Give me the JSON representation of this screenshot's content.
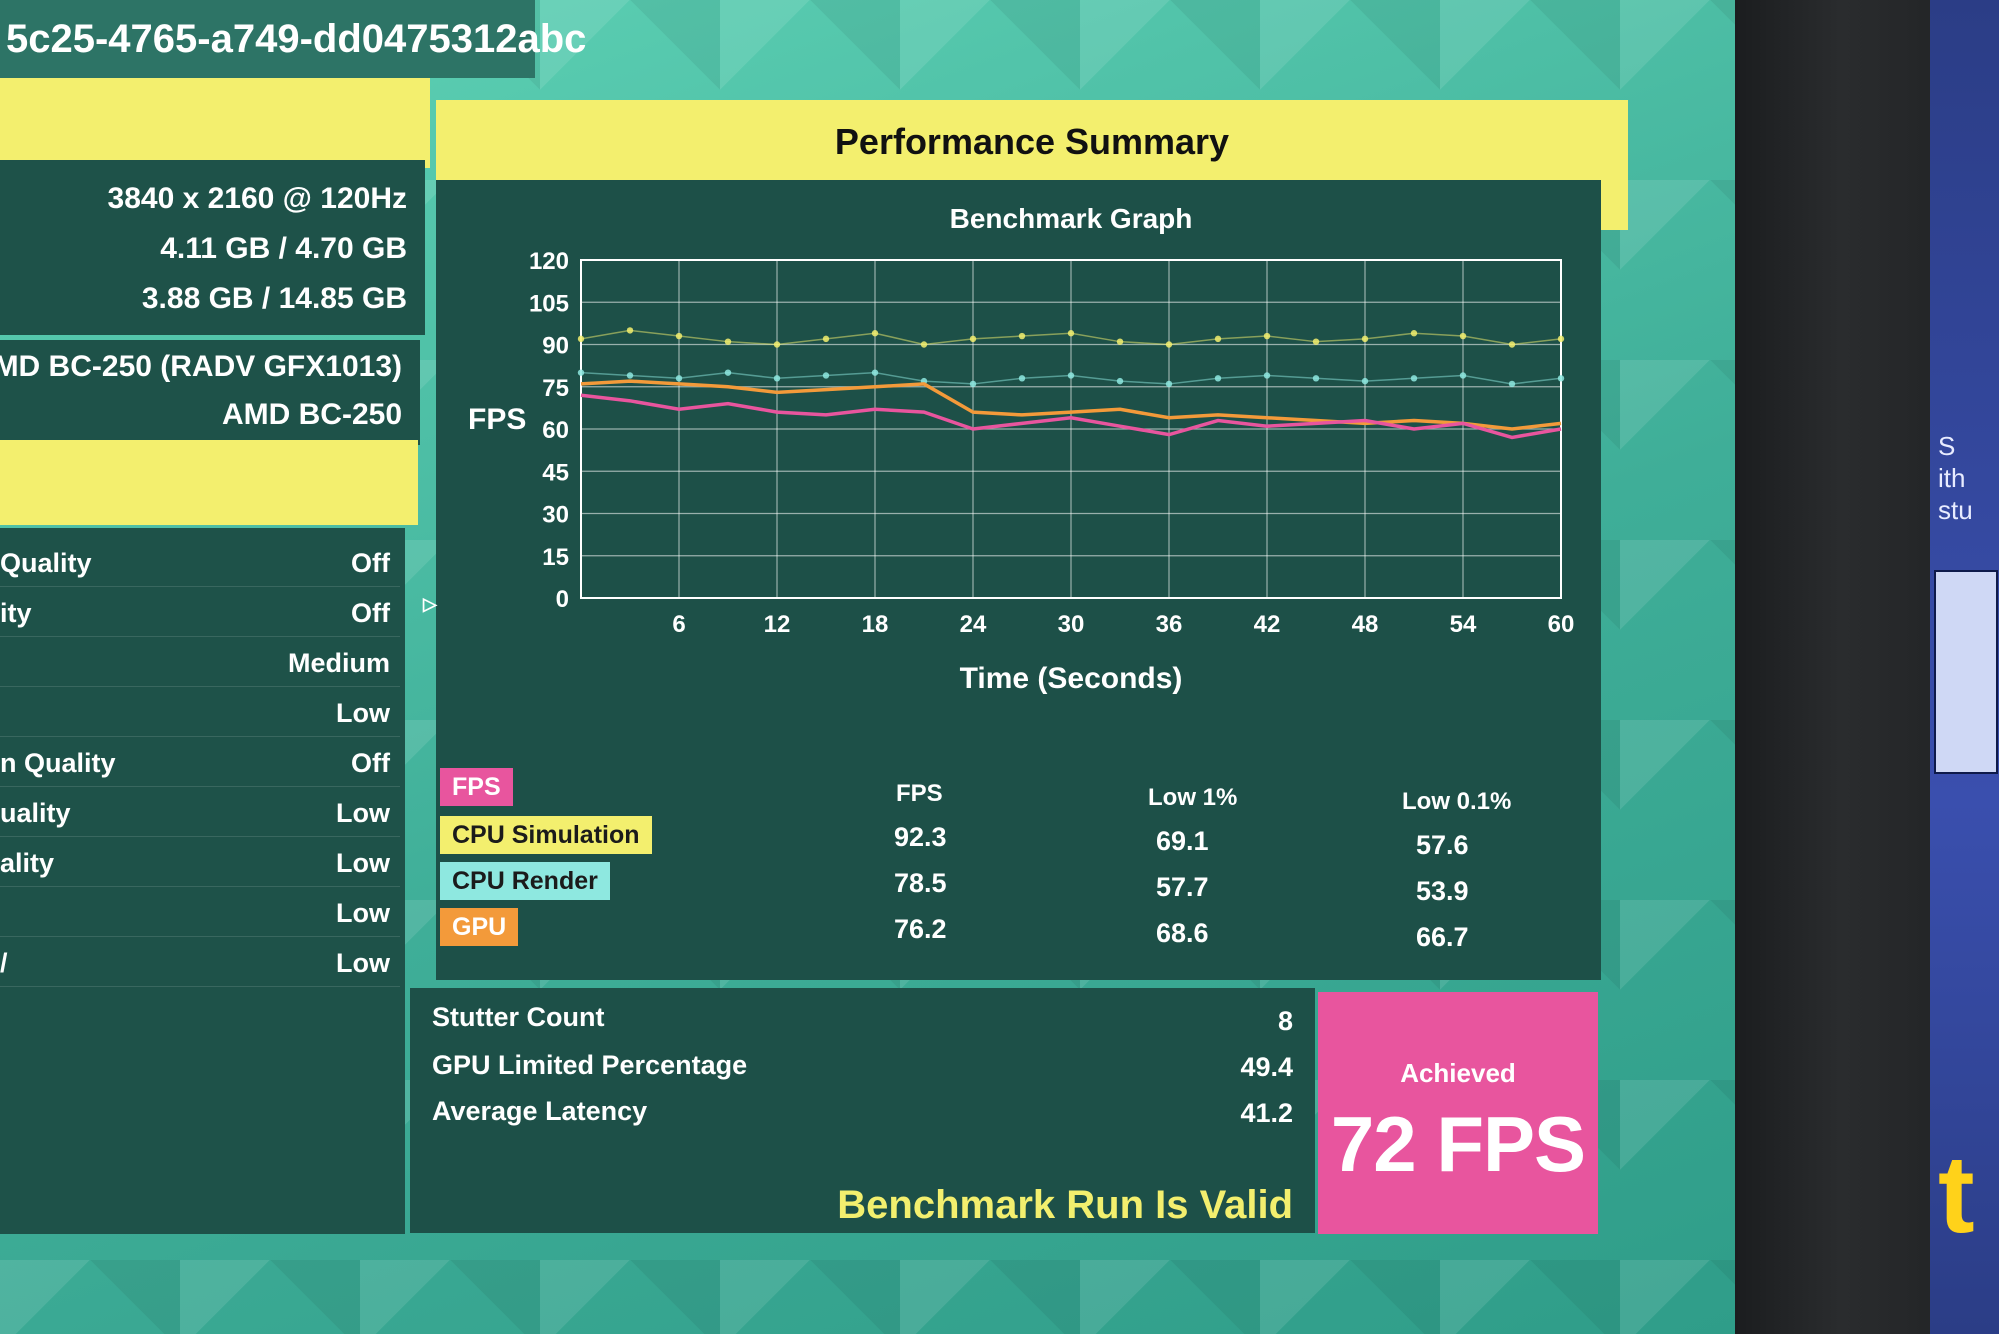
{
  "header": {
    "run_id": "5c25-4765-a749-dd0475312abc"
  },
  "system_info": [
    "3840 x 2160 @ 120Hz",
    "4.11 GB / 4.70 GB",
    "3.88 GB / 14.85 GB"
  ],
  "hardware": [
    "AMD BC-250 (RADV GFX1013)",
    "AMD BC-250"
  ],
  "settings": [
    {
      "label": "Quality",
      "value": "Off"
    },
    {
      "label": "ity",
      "value": "Off"
    },
    {
      "label": "",
      "value": "Medium"
    },
    {
      "label": "",
      "value": "Low"
    },
    {
      "label": "n Quality",
      "value": "Off"
    },
    {
      "label": "uality",
      "value": "Low"
    },
    {
      "label": "ality",
      "value": "Low"
    },
    {
      "label": "",
      "value": "Low"
    },
    {
      "label": "/",
      "value": "Low"
    }
  ],
  "summary": {
    "title": "Performance Summary"
  },
  "chart_data": {
    "type": "line",
    "title": "Benchmark Graph",
    "xlabel": "Time (Seconds)",
    "ylabel": "FPS",
    "xlim": [
      0,
      60
    ],
    "ylim": [
      0,
      120
    ],
    "x_ticks": [
      6,
      12,
      18,
      24,
      30,
      36,
      42,
      48,
      54,
      60
    ],
    "y_ticks": [
      0,
      15,
      30,
      45,
      60,
      75,
      90,
      105,
      120
    ],
    "grid": true,
    "series": [
      {
        "name": "FPS",
        "color": "#e8559e",
        "x": [
          0,
          3,
          6,
          9,
          12,
          15,
          18,
          21,
          24,
          27,
          30,
          33,
          36,
          39,
          42,
          45,
          48,
          51,
          54,
          57,
          60
        ],
        "y": [
          72,
          70,
          67,
          69,
          66,
          65,
          67,
          66,
          60,
          62,
          64,
          61,
          58,
          63,
          61,
          62,
          63,
          60,
          62,
          57,
          60
        ]
      },
      {
        "name": "GPU",
        "color": "#f39a3a",
        "x": [
          0,
          3,
          6,
          9,
          12,
          15,
          18,
          21,
          24,
          27,
          30,
          33,
          36,
          39,
          42,
          45,
          48,
          51,
          54,
          57,
          60
        ],
        "y": [
          76,
          77,
          76,
          75,
          73,
          74,
          75,
          76,
          66,
          65,
          66,
          67,
          64,
          65,
          64,
          63,
          62,
          63,
          62,
          60,
          62
        ]
      },
      {
        "name": "CPU Simulation",
        "color": "#f3ef6e",
        "x": [
          0,
          3,
          6,
          9,
          12,
          15,
          18,
          21,
          24,
          27,
          30,
          33,
          36,
          39,
          42,
          45,
          48,
          51,
          54,
          57,
          60
        ],
        "y": [
          92,
          95,
          93,
          91,
          90,
          92,
          94,
          90,
          92,
          93,
          94,
          91,
          90,
          92,
          93,
          91,
          92,
          94,
          93,
          90,
          92
        ]
      },
      {
        "name": "CPU Render",
        "color": "#8ee8e0",
        "x": [
          0,
          3,
          6,
          9,
          12,
          15,
          18,
          21,
          24,
          27,
          30,
          33,
          36,
          39,
          42,
          45,
          48,
          51,
          54,
          57,
          60
        ],
        "y": [
          80,
          79,
          78,
          80,
          78,
          79,
          80,
          77,
          76,
          78,
          79,
          77,
          76,
          78,
          79,
          78,
          77,
          78,
          79,
          76,
          78
        ]
      }
    ]
  },
  "legend_tags": [
    {
      "label": "FPS",
      "bg": "#e8559e",
      "fg": "#ffffff"
    },
    {
      "label": "CPU Simulation",
      "bg": "#f3ef6e",
      "fg": "#1b1b1b"
    },
    {
      "label": "CPU Render",
      "bg": "#8ee8e0",
      "fg": "#1b1b1b"
    },
    {
      "label": "GPU",
      "bg": "#f39a3a",
      "fg": "#ffffff"
    }
  ],
  "table": {
    "columns": [
      "FPS",
      "Low 1%",
      "Low 0.1%"
    ],
    "rows": [
      {
        "series": "CPU Simulation",
        "values": [
          "92.3",
          "69.1",
          "57.6"
        ]
      },
      {
        "series": "CPU Render",
        "values": [
          "78.5",
          "57.7",
          "53.9"
        ]
      },
      {
        "series": "GPU",
        "values": [
          "76.2",
          "68.6",
          "66.7"
        ]
      }
    ]
  },
  "stats": [
    {
      "label": "Stutter Count",
      "value": "8"
    },
    {
      "label": "GPU Limited Percentage",
      "value": "49.4"
    },
    {
      "label": "Average Latency",
      "value": "41.2"
    }
  ],
  "validity": "Benchmark Run Is Valid",
  "achieved": {
    "label": "Achieved",
    "value": "72 FPS"
  },
  "side_screen": {
    "lines": [
      "S",
      "ith",
      "stu"
    ],
    "big_letter": "t"
  }
}
